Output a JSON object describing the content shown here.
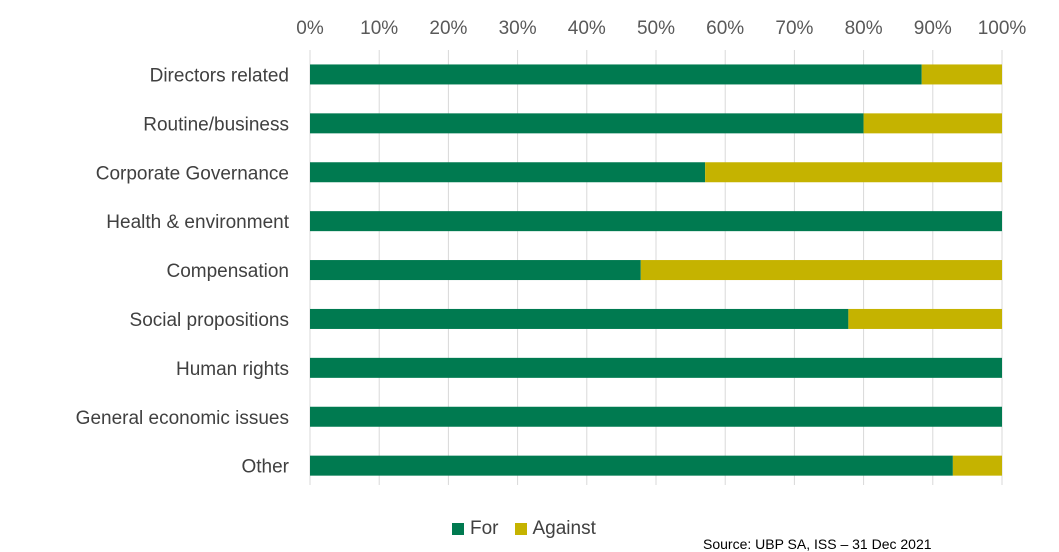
{
  "chart_data": {
    "type": "bar",
    "orientation": "horizontal",
    "stacked": "percent",
    "categories": [
      "Directors related",
      "Routine/business",
      "Corporate Governance",
      "Health & environment",
      "Compensation",
      "Social propositions",
      "Human rights",
      "General economic issues",
      "Other"
    ],
    "series": [
      {
        "name": "For",
        "color": "#007A50",
        "values": [
          88.4,
          80.0,
          57.1,
          100,
          47.8,
          77.8,
          100,
          100,
          92.9
        ]
      },
      {
        "name": "Against",
        "color": "#C5B300",
        "values": [
          11.6,
          20.0,
          42.9,
          0,
          52.2,
          22.2,
          0,
          0,
          7.1
        ]
      }
    ],
    "x_ticks": [
      "0%",
      "10%",
      "20%",
      "30%",
      "40%",
      "50%",
      "60%",
      "70%",
      "80%",
      "90%",
      "100%"
    ],
    "xlim": [
      0,
      100
    ],
    "x_axis_position": "top",
    "grid": true,
    "legend": "bottom"
  },
  "source_text": "Source: UBP SA, ISS – 31 Dec 2021"
}
